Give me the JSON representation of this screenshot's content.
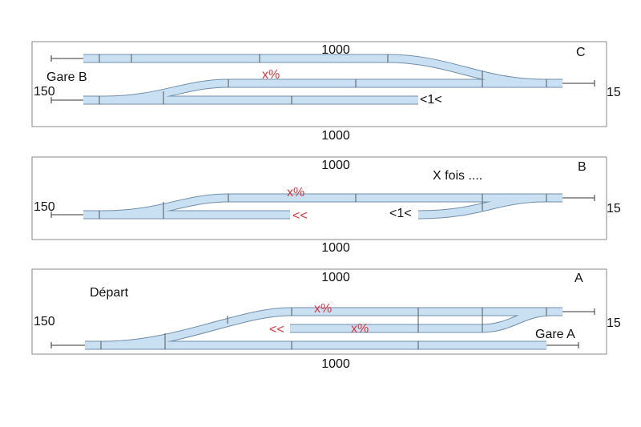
{
  "panels": [
    {
      "label": "C",
      "top_length": "1000",
      "bottom_length": "1000",
      "left_size": "150",
      "right_size": "15",
      "station": "Gare B",
      "grade": "x%",
      "ratio": "<1<"
    },
    {
      "label": "B",
      "top_length": "1000",
      "bottom_length": "1000",
      "left_size": "150",
      "right_size": "15",
      "note": "X fois ....",
      "grade": "x%",
      "arrow": "<<",
      "ratio": "<1<"
    },
    {
      "label": "A",
      "top_length": "1000",
      "bottom_length": "1000",
      "left_size": "150",
      "right_size": "15",
      "start": "Départ",
      "grade": "x%",
      "grade_lower": "x%",
      "arrow": "<<",
      "station": "Gare A"
    }
  ]
}
